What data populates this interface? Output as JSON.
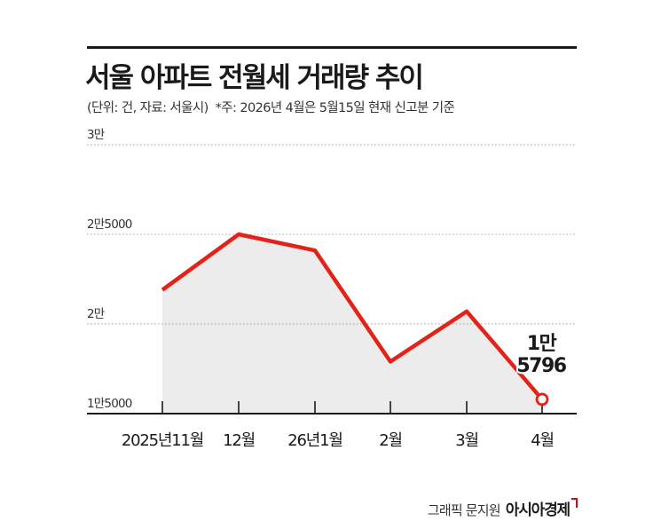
{
  "header": {
    "title": "서울 아파트 전월세 거래량 추이",
    "unit_source": "(단위: 건, 자료: 서울시)",
    "note": "*주: 2026년 4월은 5월15일 현재 신고분 기준"
  },
  "footer": {
    "author": "그래픽 문지원",
    "brand": "아시아경제"
  },
  "colors": {
    "line": "#e32219",
    "area": "#ececec",
    "grid": "#9a9a9a",
    "text": "#1a1a1a"
  },
  "chart_data": {
    "type": "area",
    "categories": [
      "2025년11월",
      "12월",
      "26년1월",
      "2월",
      "3월",
      "4월"
    ],
    "values": [
      21900,
      25000,
      24100,
      17900,
      20700,
      15796
    ],
    "ylim": [
      15000,
      30000
    ],
    "yticks": [
      15000,
      20000,
      25000,
      30000
    ],
    "ytick_labels": [
      "1만5000",
      "2만",
      "2만5000",
      "3만"
    ],
    "grid": true,
    "xlabel": "",
    "ylabel": "",
    "annotations": [
      {
        "category": "4월",
        "lines": [
          "1만",
          "5796"
        ]
      }
    ]
  }
}
